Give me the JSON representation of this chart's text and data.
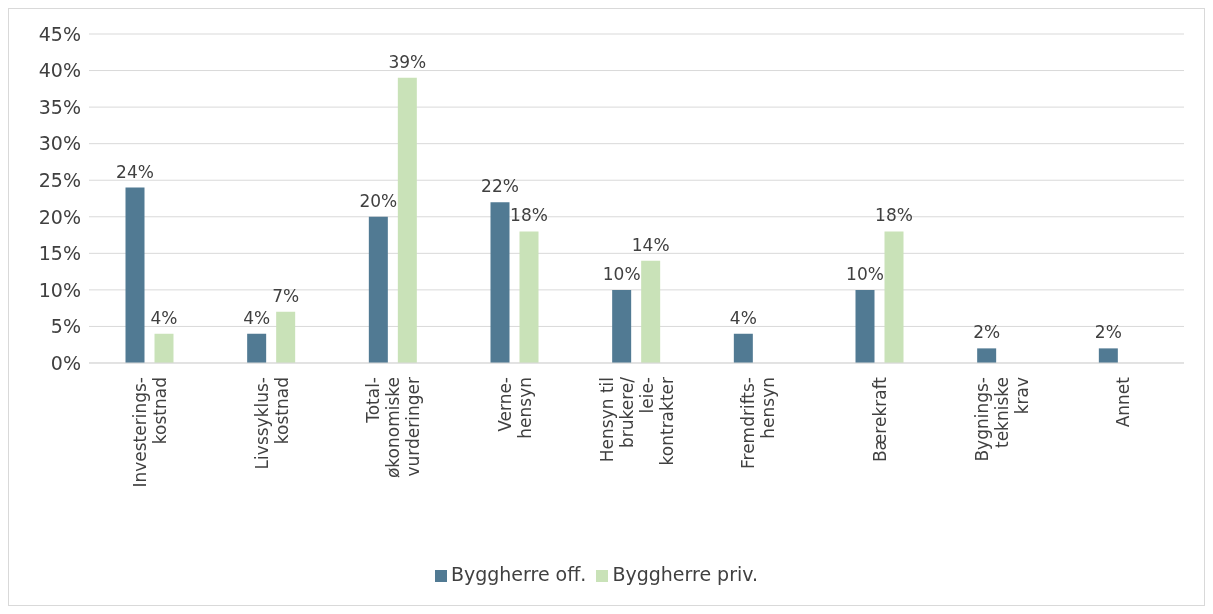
{
  "chart_data": {
    "type": "bar",
    "categories": [
      "Investerings-\nkostnad",
      "Livssyklus-\nkostnad",
      "Total-\nøkonomiske\nvurderinger",
      "Verne-\nhensyn",
      "Hensyn til\nbrukere/\nleie-\nkontrakter",
      "Fremdrifts-\nhensyn",
      "Bærekraft",
      "Bygnings-\ntekniske\nkrav",
      "Annet"
    ],
    "series": [
      {
        "name": "Byggherre off.",
        "color": "#517a93",
        "values": [
          24,
          4,
          20,
          22,
          10,
          4,
          10,
          2,
          2
        ],
        "value_labels": [
          "24%",
          "4%",
          "20%",
          "22%",
          "10%",
          "4%",
          "10%",
          "2%",
          "2%"
        ]
      },
      {
        "name": "Byggherre priv.",
        "color": "#c9e2b8",
        "values": [
          4,
          7,
          39,
          18,
          14,
          null,
          18,
          null,
          null
        ],
        "value_labels": [
          "4%",
          "7%",
          "39%",
          "18%",
          "14%",
          null,
          "18%",
          null,
          null
        ]
      }
    ],
    "ylim": [
      0,
      45
    ],
    "yticks": [
      {
        "value": 0,
        "label": "0%"
      },
      {
        "value": 5,
        "label": "5%"
      },
      {
        "value": 10,
        "label": "10%"
      },
      {
        "value": 15,
        "label": "15%"
      },
      {
        "value": 20,
        "label": "20%"
      },
      {
        "value": 25,
        "label": "25%"
      },
      {
        "value": 30,
        "label": "30%"
      },
      {
        "value": 35,
        "label": "35%"
      },
      {
        "value": 40,
        "label": "40%"
      },
      {
        "value": 45,
        "label": "45%"
      }
    ],
    "grid": "y",
    "legend": "bottom"
  }
}
